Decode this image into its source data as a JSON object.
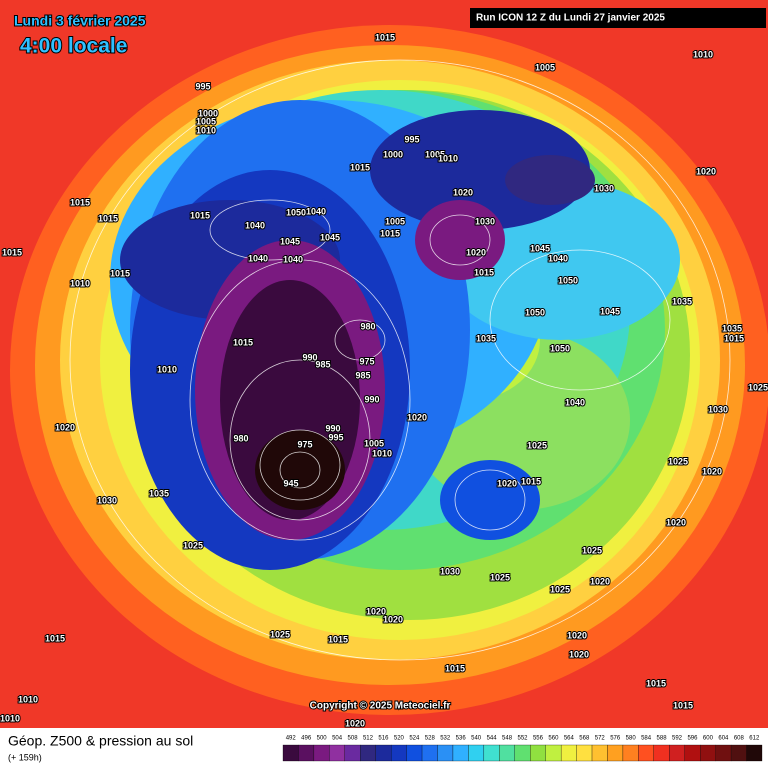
{
  "header": {
    "date": "Lundi 3 février 2025",
    "time": "4:00 locale",
    "run": "Run ICON 12 Z du Lundi 27 janvier 2025"
  },
  "footer": {
    "title": "Géop. Z500 & pression au sol",
    "lead": "(+ 159h)",
    "copyright": "Copyright © 2025 Meteociel.fr"
  },
  "scale": {
    "labels": [
      492,
      496,
      500,
      504,
      508,
      512,
      516,
      520,
      524,
      528,
      532,
      536,
      540,
      544,
      548,
      552,
      556,
      560,
      564,
      568,
      572,
      576,
      580,
      584,
      588,
      592,
      596,
      600,
      604,
      608,
      612
    ],
    "colors": [
      "#3a0a3e",
      "#5a1060",
      "#7a1a80",
      "#9030a0",
      "#6a2aa0",
      "#302880",
      "#1c2a9c",
      "#1438c0",
      "#1050e0",
      "#1f70f0",
      "#2a90f5",
      "#30b0ff",
      "#30d0f0",
      "#40e0d0",
      "#50e0a0",
      "#60e070",
      "#90e040",
      "#c0f040",
      "#f0f040",
      "#ffe040",
      "#ffc030",
      "#ffa020",
      "#ff8020",
      "#ff5020",
      "#f03020",
      "#d02020",
      "#b01010",
      "#901010",
      "#701010",
      "#501010",
      "#200808"
    ]
  },
  "pressure_labels": [
    1015,
    1005,
    1010,
    995,
    1000,
    1005,
    1010,
    995,
    1000,
    1005,
    1010,
    1015,
    1020,
    1030,
    1020,
    1015,
    1015,
    1015,
    1040,
    1050,
    1040,
    1045,
    1045,
    1040,
    1040,
    1005,
    1015,
    1030,
    1020,
    1015,
    1045,
    1040,
    1050,
    1045,
    1035,
    1015,
    1015,
    1010,
    1015,
    1015,
    1010,
    980,
    990,
    985,
    975,
    985,
    990,
    1035,
    1050,
    1050,
    1040,
    1020,
    1020,
    980,
    975,
    990,
    995,
    1005,
    1010,
    1025,
    1020,
    1015,
    945,
    1035,
    1030,
    1025,
    1025,
    1030,
    1025,
    1020,
    1025,
    1020,
    1020,
    1025,
    1015,
    1015,
    1020,
    1020,
    1015,
    1015,
    1015,
    1010,
    1020,
    1010,
    1035,
    1025,
    1030,
    1020,
    1020,
    1025
  ]
}
